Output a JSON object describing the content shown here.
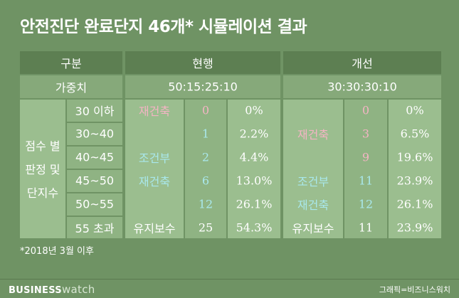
{
  "title": "안전진단 완료단지 46개* 시뮬레이션 결과",
  "header": {
    "col1": "구분",
    "current": "현행",
    "improved": "개선"
  },
  "weights": {
    "label": "가중치",
    "current": "50:15:25:10",
    "improved": "30:30:30:10"
  },
  "group_label": [
    "점수 별",
    "판정 및",
    "단지수"
  ],
  "categories": {
    "rebuild": "재건축",
    "conditional": "조건부",
    "conditional_rebuild": "재건축",
    "maintain": "유지보수"
  },
  "rows": [
    {
      "range": "30 이하",
      "cur_count": "0",
      "cur_pct": "0%",
      "new_count": "0",
      "new_pct": "0%"
    },
    {
      "range": "30~40",
      "cur_count": "1",
      "cur_pct": "2.2%",
      "new_count": "3",
      "new_pct": "6.5%"
    },
    {
      "range": "40~45",
      "cur_count": "2",
      "cur_pct": "4.4%",
      "new_count": "9",
      "new_pct": "19.6%"
    },
    {
      "range": "45~50",
      "cur_count": "6",
      "cur_pct": "13.0%",
      "new_count": "11",
      "new_pct": "23.9%"
    },
    {
      "range": "50~55",
      "cur_count": "12",
      "cur_pct": "26.1%",
      "new_count": "12",
      "new_pct": "26.1%"
    },
    {
      "range": "55 초과",
      "cur_count": "25",
      "cur_pct": "54.3%",
      "new_count": "11",
      "new_pct": "23.9%"
    }
  ],
  "note": "*2018년 3월 이후",
  "footer": {
    "brand_main": "BUSINESS",
    "brand_sub": "watch",
    "credit": "그래픽=비즈니스워치"
  },
  "colors": {
    "background": "#6f9364",
    "header": "#5d7f52",
    "rebuild": "#f4b4c4",
    "conditional": "#a9e8ec"
  }
}
